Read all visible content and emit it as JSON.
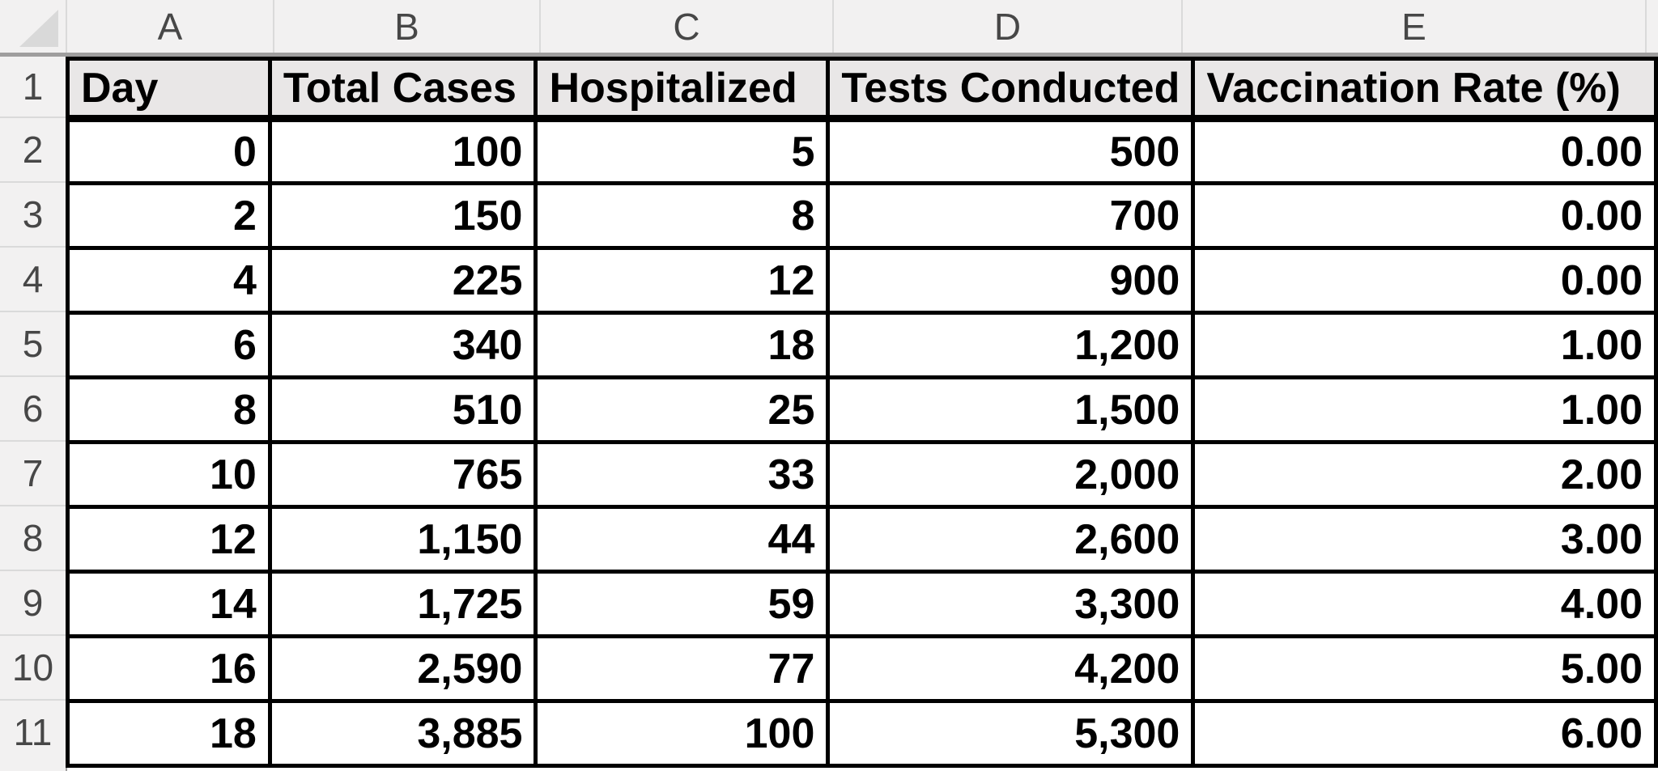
{
  "sheet": {
    "column_letters": [
      "A",
      "B",
      "C",
      "D",
      "E"
    ],
    "row_numbers": [
      1,
      2,
      3,
      4,
      5,
      6,
      7,
      8,
      9,
      10,
      11
    ],
    "header_row": [
      "Day",
      "Total Cases",
      "Hospitalized",
      "Tests Conducted",
      "Vaccination Rate (%)"
    ],
    "rows": [
      [
        "0",
        "100",
        "5",
        "500",
        "0.00"
      ],
      [
        "2",
        "150",
        "8",
        "700",
        "0.00"
      ],
      [
        "4",
        "225",
        "12",
        "900",
        "0.00"
      ],
      [
        "6",
        "340",
        "18",
        "1,200",
        "1.00"
      ],
      [
        "8",
        "510",
        "25",
        "1,500",
        "1.00"
      ],
      [
        "10",
        "765",
        "33",
        "2,000",
        "2.00"
      ],
      [
        "12",
        "1,150",
        "44",
        "2,600",
        "3.00"
      ],
      [
        "14",
        "1,725",
        "59",
        "3,300",
        "4.00"
      ],
      [
        "16",
        "2,590",
        "77",
        "4,200",
        "5.00"
      ],
      [
        "18",
        "3,885",
        "100",
        "5,300",
        "6.00"
      ]
    ],
    "colors": {
      "strip_bg": "#f2f1f1",
      "strip_text": "#474747",
      "strip_border": "#9f9e9e",
      "strip_separator": "#dadada",
      "header_fill": "#e9e7e7",
      "corner_triangle": "#d9d9d9",
      "grid_border": "#000000",
      "cell_text": "#000000",
      "cell_bg": "#ffffff"
    }
  }
}
